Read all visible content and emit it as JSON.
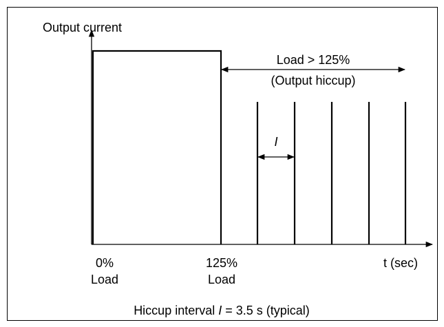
{
  "axes": {
    "y_label": "Output current",
    "x_label": "t (sec)"
  },
  "x_labels": [
    {
      "line1": "0%",
      "line2": "Load"
    },
    {
      "line1": "125%",
      "line2": "Load"
    }
  ],
  "region": {
    "line1": "Load > 125%",
    "line2": "(Output hiccup)"
  },
  "interval_symbol": "I",
  "caption": {
    "before": "Hiccup interval ",
    "symbol": "I",
    "after": " = 3.5 s (typical)"
  }
}
